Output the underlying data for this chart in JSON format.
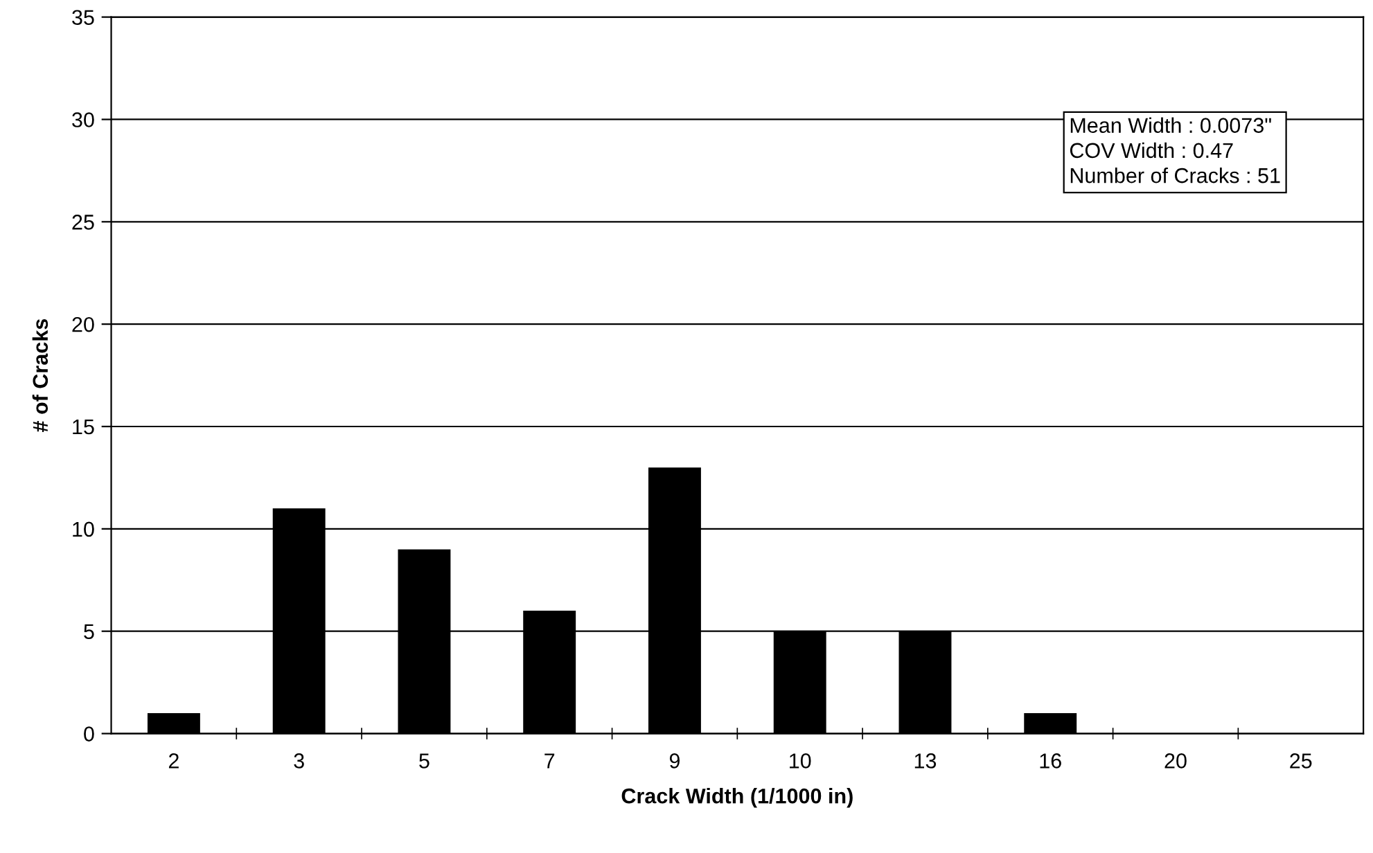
{
  "chart_data": {
    "type": "bar",
    "xlabel": "Crack Width (1/1000 in)",
    "ylabel": "# of Cracks",
    "categories": [
      "2",
      "3",
      "5",
      "7",
      "9",
      "10",
      "13",
      "16",
      "20",
      "25"
    ],
    "values": [
      1,
      11,
      9,
      6,
      13,
      5,
      5,
      1,
      0,
      0
    ],
    "color": "#000000",
    "ylim": [
      0,
      35
    ],
    "yticks": [
      0,
      5,
      10,
      15,
      20,
      25,
      30,
      35
    ],
    "grid": "y",
    "legend": false,
    "annotations": [
      "Mean Width : 0.0073\"",
      "COV Width : 0.47",
      "Number of Cracks : 51"
    ]
  }
}
